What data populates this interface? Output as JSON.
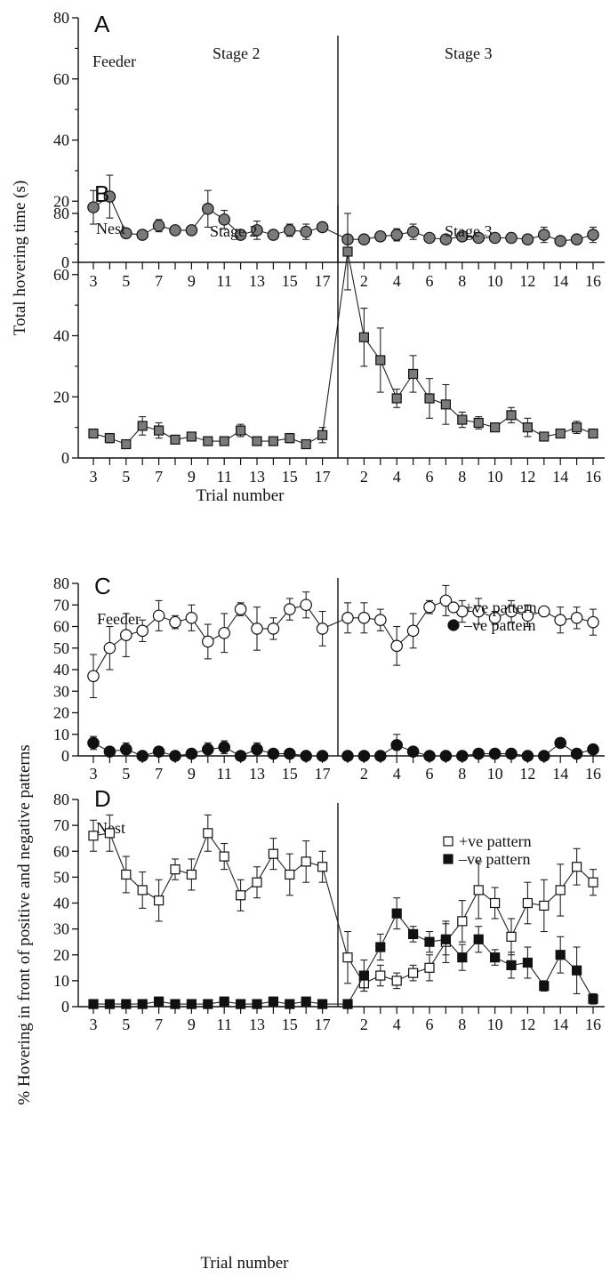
{
  "ylabel_top": "Total hovering time (s)",
  "ylabel_bottom": "% Hovering in front of positive and negative patterns",
  "xlabel": "Trial number",
  "x_ticks": [
    "3",
    "5",
    "7",
    "9",
    "11",
    "13",
    "15",
    "17",
    "2",
    "4",
    "6",
    "8",
    "10",
    "12",
    "14",
    "16"
  ],
  "chart_data": [
    {
      "type": "line",
      "panel": "A",
      "annotations": [
        "Feeder",
        "Stage 2",
        "Stage 3"
      ],
      "ylim": [
        0,
        80
      ],
      "y_ticks": [
        0,
        20,
        40,
        60,
        80
      ],
      "x_label": "Trial number",
      "stage2_trials": [
        3,
        4,
        5,
        6,
        7,
        8,
        9,
        10,
        11,
        12,
        13,
        14,
        15,
        16,
        17
      ],
      "stage3_trials": [
        1,
        2,
        3,
        4,
        5,
        6,
        7,
        8,
        9,
        10,
        11,
        12,
        13,
        14,
        15,
        16
      ],
      "series": [
        {
          "marker": "circle",
          "fill": "#7a7a7a",
          "stage2": [
            18,
            21.5,
            9.5,
            9,
            12,
            10.5,
            10.5,
            17.5,
            14,
            9,
            10.5,
            9,
            10.5,
            10,
            11.5
          ],
          "stage2_err": [
            5.5,
            7,
            1,
            0.8,
            2,
            1,
            1,
            6,
            3,
            1.5,
            3,
            1.5,
            2,
            2.5,
            1.5
          ],
          "stage3": [
            7.5,
            7.5,
            8.5,
            9,
            10,
            8,
            7.5,
            8.5,
            8,
            8,
            8,
            7.5,
            9,
            7,
            7.5,
            9
          ],
          "stage3_err": [
            1,
            1,
            1.5,
            2,
            2.5,
            1,
            1,
            1.5,
            1,
            1,
            1.5,
            1,
            2.5,
            1,
            1,
            2.5
          ]
        }
      ]
    },
    {
      "type": "line",
      "panel": "B",
      "annotations": [
        "Nest",
        "Stage 2",
        "Stage 3"
      ],
      "ylim": [
        0,
        80
      ],
      "y_ticks": [
        0,
        20,
        40,
        60,
        80
      ],
      "x_label": "Trial number",
      "stage2_trials": [
        3,
        4,
        5,
        6,
        7,
        8,
        9,
        10,
        11,
        12,
        13,
        14,
        15,
        16,
        17
      ],
      "stage3_trials": [
        1,
        2,
        3,
        4,
        5,
        6,
        7,
        8,
        9,
        10,
        11,
        12,
        13,
        14,
        15,
        16
      ],
      "series": [
        {
          "marker": "square",
          "fill": "#7a7a7a",
          "stage2": [
            8,
            6.5,
            4.5,
            10.5,
            9,
            6,
            7,
            5.5,
            5.5,
            9,
            5.5,
            5.5,
            6.5,
            4.5,
            7.5
          ],
          "stage2_err": [
            1,
            1.5,
            0.8,
            3,
            2.5,
            1,
            1,
            1,
            1,
            2,
            1,
            1,
            1.5,
            1,
            2.5
          ],
          "stage3": [
            67.5,
            39.5,
            32,
            19.5,
            27.5,
            19.5,
            17.5,
            12.5,
            11.5,
            10,
            14,
            10,
            7,
            8,
            10,
            8
          ],
          "stage3_err": [
            12.5,
            9.5,
            10.5,
            3,
            6,
            6.5,
            6.5,
            2.5,
            2,
            1,
            2.5,
            3,
            1,
            1,
            2,
            1
          ]
        }
      ]
    },
    {
      "type": "line",
      "panel": "C",
      "annotations": [
        "Feeder"
      ],
      "ylim": [
        0,
        80
      ],
      "y_ticks": [
        0,
        10,
        20,
        30,
        40,
        50,
        60,
        70,
        80
      ],
      "legend_position": "middle-right",
      "stage2_trials": [
        3,
        4,
        5,
        6,
        7,
        8,
        9,
        10,
        11,
        12,
        13,
        14,
        15,
        16,
        17
      ],
      "stage3_trials": [
        1,
        2,
        3,
        4,
        5,
        6,
        7,
        8,
        9,
        10,
        11,
        12,
        13,
        14,
        15,
        16
      ],
      "series": [
        {
          "name": "+ve pattern",
          "marker": "circle",
          "fill": "#ffffff",
          "stage2": [
            37,
            50,
            56,
            58,
            65,
            62,
            64,
            53,
            57,
            68,
            59,
            59,
            68,
            70,
            59
          ],
          "stage2_err": [
            10,
            10,
            10,
            5,
            7,
            3,
            6,
            8,
            9,
            3,
            10,
            5,
            5,
            6,
            8
          ],
          "stage3": [
            64,
            64,
            63,
            51,
            58,
            69,
            72,
            67,
            67,
            64,
            67,
            65,
            67,
            63,
            64,
            62
          ],
          "stage3_err": [
            7,
            7,
            5,
            9,
            8,
            3,
            7,
            5,
            6,
            3,
            5,
            5,
            2,
            6,
            5,
            6
          ]
        },
        {
          "name": "–ve pattern",
          "marker": "circle",
          "fill": "#111111",
          "stage2": [
            6,
            2,
            3,
            0,
            2,
            0,
            1,
            3,
            4,
            0,
            3,
            1,
            1,
            0,
            0
          ],
          "stage2_err": [
            3,
            1,
            3,
            0,
            2,
            0,
            1,
            3,
            3,
            0,
            3,
            1,
            2,
            0,
            0
          ],
          "stage3": [
            0,
            0,
            0,
            5,
            2,
            0,
            0,
            0,
            1,
            1,
            1,
            0,
            0,
            6,
            1,
            3
          ],
          "stage3_err": [
            0,
            0,
            0,
            5,
            2,
            0,
            0,
            0,
            2,
            2,
            2,
            0,
            0,
            2,
            1,
            2
          ]
        }
      ]
    },
    {
      "type": "line",
      "panel": "D",
      "annotations": [
        "Nest"
      ],
      "ylim": [
        0,
        80
      ],
      "y_ticks": [
        0,
        10,
        20,
        30,
        40,
        50,
        60,
        70,
        80
      ],
      "x_label": "Trial number",
      "legend_position": "top-right",
      "stage2_trials": [
        3,
        4,
        5,
        6,
        7,
        8,
        9,
        10,
        11,
        12,
        13,
        14,
        15,
        16,
        17
      ],
      "stage3_trials": [
        1,
        2,
        3,
        4,
        5,
        6,
        7,
        8,
        9,
        10,
        11,
        12,
        13,
        14,
        15,
        16
      ],
      "series": [
        {
          "name": "+ve pattern",
          "marker": "square",
          "fill": "#ffffff",
          "stage2": [
            66,
            67,
            51,
            45,
            41,
            53,
            51,
            67,
            58,
            43,
            48,
            59,
            51,
            56,
            54
          ],
          "stage2_err": [
            6,
            7,
            7,
            7,
            8,
            4,
            6,
            7,
            5,
            6,
            6,
            6,
            8,
            8,
            6
          ],
          "stage3": [
            19,
            9,
            12,
            10,
            13,
            15,
            25,
            33,
            45,
            40,
            27,
            40,
            39,
            45,
            54,
            48
          ],
          "stage3_err": [
            10,
            3,
            4,
            3,
            3,
            5,
            8,
            8,
            11,
            6,
            7,
            8,
            10,
            10,
            7,
            5
          ]
        },
        {
          "name": "–ve pattern",
          "marker": "square",
          "fill": "#111111",
          "stage2": [
            1,
            1,
            1,
            1,
            2,
            1,
            1,
            1,
            2,
            1,
            1,
            2,
            1,
            2,
            1
          ],
          "stage2_err": [
            0,
            0,
            0,
            0,
            1,
            0,
            0,
            0,
            1,
            0,
            0,
            1,
            0,
            1,
            0
          ],
          "stage3": [
            1,
            12,
            23,
            36,
            28,
            25,
            26,
            19,
            26,
            19,
            16,
            17,
            8,
            20,
            14,
            3
          ],
          "stage3_err": [
            0,
            6,
            5,
            6,
            3,
            4,
            6,
            5,
            5,
            3,
            5,
            6,
            2,
            7,
            9,
            2
          ]
        }
      ]
    }
  ]
}
